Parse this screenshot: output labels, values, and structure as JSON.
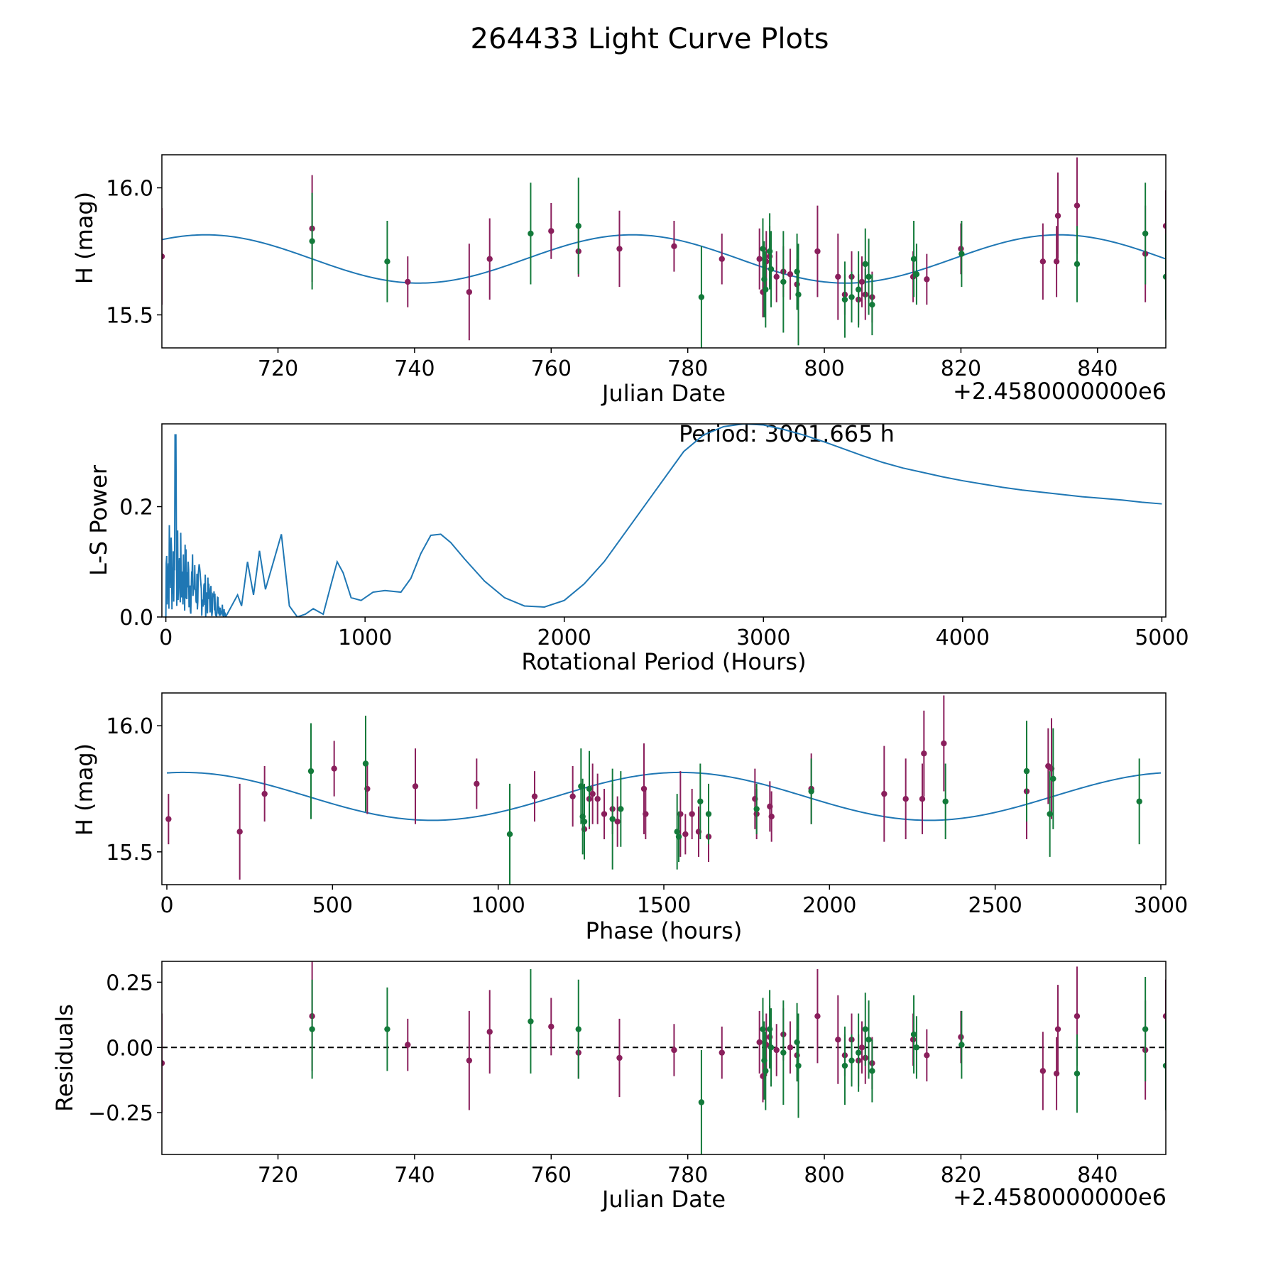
{
  "title": "264433 Light Curve Plots",
  "colors": {
    "series_a": "#8a1f5c",
    "series_b": "#137a3a",
    "model": "#1f77b4",
    "axis": "#000000"
  },
  "chart_data": [
    {
      "id": "lightcurve",
      "type": "scatter",
      "xlabel": "Julian Date",
      "ylabel": "H (mag)",
      "offset_label": "+2.4580000000e6",
      "xlim": [
        703,
        850
      ],
      "ylim": [
        15.37,
        16.13
      ],
      "xticks": [
        720,
        740,
        760,
        780,
        800,
        820,
        840
      ],
      "yticks": [
        15.5,
        16.0
      ],
      "ytick_labels": [
        "15.5",
        "16.0"
      ],
      "model": {
        "mean": 15.72,
        "amp": 0.095,
        "period_days": 62.5,
        "phase0_day": 709.4
      },
      "series": [
        {
          "name": "magenta",
          "color": "#8a1f5c",
          "x": [
            703,
            725,
            739,
            748,
            751,
            760,
            764,
            770,
            778,
            785,
            790.5,
            791,
            791.5,
            792,
            793,
            794,
            795,
            796,
            799,
            802,
            803,
            804,
            805,
            805.5,
            806,
            807,
            813,
            815,
            820,
            832,
            834,
            834.2,
            837,
            847,
            850
          ],
          "y": [
            15.73,
            15.84,
            15.63,
            15.59,
            15.72,
            15.83,
            15.75,
            15.76,
            15.77,
            15.72,
            15.72,
            15.59,
            15.71,
            15.73,
            15.65,
            15.67,
            15.66,
            15.62,
            15.75,
            15.65,
            15.58,
            15.65,
            15.56,
            15.63,
            15.58,
            15.57,
            15.65,
            15.64,
            15.76,
            15.71,
            15.71,
            15.89,
            15.93,
            15.74,
            15.85
          ],
          "err": [
            0.19,
            0.21,
            0.1,
            0.19,
            0.16,
            0.11,
            0.1,
            0.15,
            0.1,
            0.1,
            0.12,
            0.1,
            0.12,
            0.12,
            0.1,
            0.1,
            0.1,
            0.1,
            0.18,
            0.17,
            0.08,
            0.1,
            0.1,
            0.1,
            0.1,
            0.1,
            0.1,
            0.1,
            0.1,
            0.15,
            0.14,
            0.17,
            0.19,
            0.19,
            0.14
          ]
        },
        {
          "name": "green",
          "color": "#137a3a",
          "x": [
            725,
            736,
            757,
            764,
            782,
            791,
            791.2,
            791.4,
            792,
            792.2,
            794,
            796,
            796.2,
            803,
            804,
            805,
            806,
            806.5,
            807,
            813.1,
            813.5,
            820.1,
            837,
            847,
            850
          ],
          "y": [
            15.79,
            15.71,
            15.82,
            15.85,
            15.57,
            15.76,
            15.64,
            15.6,
            15.75,
            15.68,
            15.63,
            15.67,
            15.58,
            15.56,
            15.57,
            15.6,
            15.7,
            15.65,
            15.54,
            15.72,
            15.66,
            15.74,
            15.7,
            15.82,
            15.65
          ],
          "err": [
            0.19,
            0.16,
            0.2,
            0.19,
            0.2,
            0.12,
            0.15,
            0.15,
            0.15,
            0.15,
            0.2,
            0.15,
            0.2,
            0.15,
            0.1,
            0.15,
            0.14,
            0.15,
            0.12,
            0.15,
            0.12,
            0.13,
            0.15,
            0.2,
            0.17
          ]
        }
      ]
    },
    {
      "id": "periodogram",
      "type": "line",
      "xlabel": "Rotational Period (Hours)",
      "ylabel": "L-S Power",
      "annotation": "Period: 3001.665 h",
      "xlim": [
        -20,
        5020
      ],
      "ylim": [
        0,
        0.35
      ],
      "xticks": [
        0,
        1000,
        2000,
        3000,
        4000,
        5000
      ],
      "yticks": [
        0.0,
        0.2
      ],
      "ytick_labels": [
        "0.0",
        "0.2"
      ],
      "smooth_curve": {
        "x": [
          300,
          360,
          380,
          410,
          440,
          470,
          500,
          540,
          580,
          620,
          660,
          700,
          740,
          790,
          830,
          860,
          890,
          930,
          980,
          1040,
          1100,
          1180,
          1230,
          1280,
          1330,
          1380,
          1430,
          1500,
          1600,
          1700,
          1800,
          1900,
          2000,
          2100,
          2200,
          2300,
          2400,
          2500,
          2600,
          2700,
          2800,
          2900,
          3000,
          3100,
          3200,
          3300,
          3400,
          3500,
          3600,
          3700,
          3800,
          3900,
          4000,
          4100,
          4200,
          4300,
          4400,
          4500,
          4600,
          4700,
          4800,
          4900,
          5000
        ],
        "y": [
          0.0,
          0.04,
          0.02,
          0.1,
          0.04,
          0.12,
          0.05,
          0.1,
          0.15,
          0.02,
          0.0,
          0.005,
          0.015,
          0.005,
          0.06,
          0.1,
          0.08,
          0.035,
          0.03,
          0.045,
          0.048,
          0.045,
          0.07,
          0.115,
          0.148,
          0.15,
          0.135,
          0.105,
          0.065,
          0.035,
          0.02,
          0.018,
          0.03,
          0.06,
          0.1,
          0.15,
          0.2,
          0.25,
          0.3,
          0.33,
          0.345,
          0.35,
          0.348,
          0.34,
          0.33,
          0.318,
          0.305,
          0.292,
          0.28,
          0.27,
          0.262,
          0.254,
          0.247,
          0.241,
          0.235,
          0.23,
          0.226,
          0.222,
          0.218,
          0.215,
          0.212,
          0.208,
          0.205
        ]
      }
    },
    {
      "id": "phase",
      "type": "scatter",
      "xlabel": "Phase (hours)",
      "ylabel": "H (mag)",
      "xlim": [
        -15,
        3015
      ],
      "ylim": [
        15.37,
        16.13
      ],
      "xticks": [
        0,
        500,
        1000,
        1500,
        2000,
        2500,
        3000
      ],
      "yticks": [
        15.5,
        16.0
      ],
      "ytick_labels": [
        "15.5",
        "16.0"
      ],
      "model": {
        "mean": 15.72,
        "amp": 0.095,
        "period_hours": 1500,
        "phase0_hours": 50
      },
      "series": [
        {
          "name": "magenta",
          "color": "#8a1f5c",
          "x": [
            5,
            220,
            295,
            505,
            605,
            750,
            935,
            1110,
            1225,
            1260,
            1275,
            1285,
            1300,
            1320,
            1345,
            1360,
            1440,
            1445,
            1550,
            1565,
            1585,
            1605,
            1635,
            1775,
            1780,
            1820,
            1825,
            1945,
            2165,
            2230,
            2280,
            2285,
            2345,
            2595,
            2660,
            2670
          ],
          "y": [
            15.63,
            15.58,
            15.73,
            15.83,
            15.75,
            15.76,
            15.77,
            15.72,
            15.72,
            15.59,
            15.71,
            15.73,
            15.71,
            15.65,
            15.67,
            15.62,
            15.75,
            15.65,
            15.65,
            15.57,
            15.65,
            15.58,
            15.56,
            15.71,
            15.65,
            15.68,
            15.64,
            15.75,
            15.73,
            15.71,
            15.71,
            15.89,
            15.93,
            15.74,
            15.84,
            15.83
          ],
          "err": [
            0.1,
            0.19,
            0.11,
            0.11,
            0.1,
            0.15,
            0.1,
            0.1,
            0.12,
            0.1,
            0.12,
            0.12,
            0.1,
            0.1,
            0.1,
            0.1,
            0.18,
            0.1,
            0.17,
            0.08,
            0.1,
            0.1,
            0.1,
            0.12,
            0.1,
            0.1,
            0.1,
            0.14,
            0.19,
            0.16,
            0.14,
            0.17,
            0.19,
            0.19,
            0.15,
            0.2
          ]
        },
        {
          "name": "green",
          "color": "#137a3a",
          "x": [
            435,
            600,
            1035,
            1250,
            1255,
            1260,
            1275,
            1345,
            1370,
            1540,
            1545,
            1610,
            1635,
            1780,
            1945,
            2350,
            2595,
            2665,
            2675,
            2935
          ],
          "y": [
            15.82,
            15.85,
            15.57,
            15.76,
            15.64,
            15.62,
            15.75,
            15.63,
            15.67,
            15.58,
            15.56,
            15.7,
            15.65,
            15.67,
            15.74,
            15.7,
            15.82,
            15.65,
            15.79,
            15.7
          ],
          "err": [
            0.19,
            0.19,
            0.2,
            0.15,
            0.15,
            0.15,
            0.15,
            0.2,
            0.15,
            0.15,
            0.1,
            0.15,
            0.12,
            0.1,
            0.13,
            0.15,
            0.2,
            0.17,
            0.2,
            0.17
          ]
        }
      ]
    },
    {
      "id": "residuals",
      "type": "scatter",
      "xlabel": "Julian Date",
      "ylabel": "Residuals",
      "offset_label": "+2.4580000000e6",
      "xlim": [
        703,
        850
      ],
      "ylim": [
        -0.41,
        0.33
      ],
      "xticks": [
        720,
        740,
        760,
        780,
        800,
        820,
        840
      ],
      "yticks": [
        -0.25,
        0.0,
        0.25
      ],
      "ytick_labels": [
        "−0.25",
        "0.00",
        "0.25"
      ],
      "zero_line": true,
      "series": [
        {
          "name": "magenta",
          "color": "#8a1f5c",
          "x": [
            703,
            725,
            739,
            748,
            751,
            760,
            764,
            770,
            778,
            785,
            790.5,
            791,
            791.5,
            792,
            793,
            794,
            795,
            796,
            799,
            802,
            803,
            804,
            805,
            805.5,
            806,
            807,
            813,
            815,
            820,
            832,
            834,
            834.2,
            837,
            847,
            850
          ],
          "y": [
            -0.06,
            0.12,
            0.01,
            -0.05,
            0.06,
            0.08,
            -0.02,
            -0.04,
            -0.01,
            -0.02,
            0.02,
            -0.11,
            0.01,
            0.04,
            -0.01,
            0.05,
            0.0,
            -0.03,
            0.12,
            0.03,
            -0.03,
            0.03,
            -0.05,
            0.0,
            -0.04,
            -0.06,
            0.03,
            -0.03,
            0.04,
            -0.09,
            -0.1,
            0.07,
            0.12,
            -0.01,
            0.12
          ],
          "err": [
            0.19,
            0.21,
            0.1,
            0.19,
            0.16,
            0.11,
            0.1,
            0.15,
            0.1,
            0.1,
            0.12,
            0.1,
            0.12,
            0.12,
            0.1,
            0.1,
            0.1,
            0.1,
            0.18,
            0.17,
            0.08,
            0.1,
            0.1,
            0.1,
            0.1,
            0.1,
            0.1,
            0.1,
            0.1,
            0.15,
            0.14,
            0.17,
            0.19,
            0.19,
            0.14
          ]
        },
        {
          "name": "green",
          "color": "#137a3a",
          "x": [
            725,
            736,
            757,
            764,
            782,
            791,
            791.2,
            791.4,
            792,
            792.2,
            794,
            796,
            796.2,
            803,
            804,
            805,
            806,
            806.5,
            807,
            813.1,
            813.5,
            820.1,
            837,
            847,
            850
          ],
          "y": [
            0.07,
            0.07,
            0.1,
            0.07,
            -0.21,
            0.07,
            -0.05,
            -0.09,
            0.07,
            0.0,
            -0.02,
            0.02,
            -0.07,
            -0.07,
            -0.05,
            -0.02,
            0.07,
            0.03,
            -0.09,
            0.05,
            0.0,
            0.01,
            -0.1,
            0.07,
            -0.07
          ],
          "err": [
            0.19,
            0.16,
            0.2,
            0.19,
            0.2,
            0.12,
            0.15,
            0.15,
            0.15,
            0.15,
            0.2,
            0.15,
            0.2,
            0.15,
            0.1,
            0.15,
            0.14,
            0.15,
            0.12,
            0.15,
            0.12,
            0.13,
            0.15,
            0.2,
            0.17
          ]
        }
      ]
    }
  ]
}
